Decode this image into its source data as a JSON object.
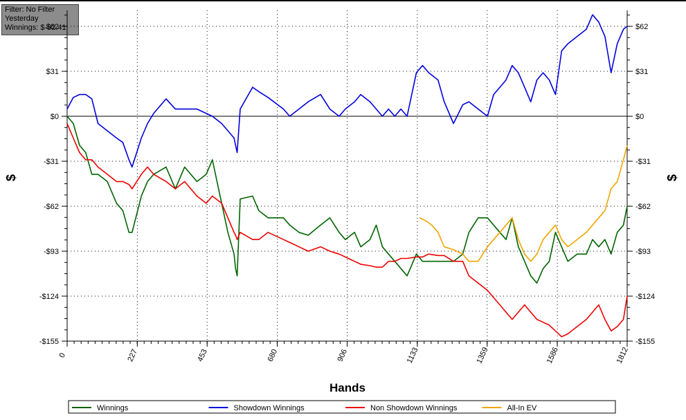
{
  "info_box": {
    "filter": "Filter: No Filter",
    "period": "Yesterday",
    "winnings": "Winnings: $-62.41"
  },
  "chart_data": {
    "type": "line",
    "xlabel": "Hands",
    "ylabel": "$",
    "xlim": [
      0,
      1812
    ],
    "ylim": [
      -155,
      73
    ],
    "x_ticks": [
      0,
      227,
      453,
      680,
      906,
      1133,
      1359,
      1586,
      1812
    ],
    "x_tick_labels": [
      "0",
      "227",
      "453",
      "680",
      "906",
      "1133",
      "1359",
      "1586",
      "1812"
    ],
    "y_ticks": [
      62,
      31,
      0,
      -31,
      -62,
      -93,
      -124,
      -155
    ],
    "y_tick_labels": [
      "$62",
      "$31",
      "$0",
      "-$31",
      "-$62",
      "-$93",
      "-$124",
      "-$155"
    ],
    "grid": true,
    "legend_position": "bottom",
    "series": [
      {
        "name": "Winnings",
        "color": "#006400",
        "x": [
          0,
          20,
          40,
          60,
          80,
          100,
          130,
          160,
          180,
          200,
          210,
          240,
          260,
          280,
          320,
          350,
          380,
          420,
          450,
          470,
          500,
          520,
          540,
          545,
          550,
          560,
          600,
          620,
          650,
          700,
          720,
          750,
          780,
          820,
          850,
          880,
          900,
          930,
          950,
          980,
          1000,
          1020,
          1040,
          1060,
          1080,
          1100,
          1130,
          1150,
          1170,
          1200,
          1220,
          1250,
          1280,
          1300,
          1330,
          1360,
          1380,
          1400,
          1420,
          1440,
          1460,
          1480,
          1500,
          1520,
          1540,
          1560,
          1580,
          1600,
          1620,
          1650,
          1680,
          1700,
          1720,
          1740,
          1760,
          1780,
          1800,
          1812
        ],
        "y": [
          0,
          -5,
          -20,
          -25,
          -40,
          -40,
          -45,
          -60,
          -65,
          -80,
          -80,
          -55,
          -45,
          -40,
          -35,
          -50,
          -35,
          -45,
          -40,
          -30,
          -60,
          -80,
          -95,
          -105,
          -110,
          -57,
          -55,
          -65,
          -70,
          -70,
          -75,
          -80,
          -82,
          -75,
          -70,
          -80,
          -85,
          -80,
          -90,
          -85,
          -75,
          -90,
          -95,
          -100,
          -105,
          -110,
          -95,
          -100,
          -100,
          -100,
          -100,
          -100,
          -95,
          -80,
          -70,
          -70,
          -75,
          -80,
          -85,
          -70,
          -90,
          -100,
          -110,
          -115,
          -105,
          -100,
          -80,
          -90,
          -100,
          -95,
          -95,
          -85,
          -90,
          -85,
          -95,
          -80,
          -75,
          -62
        ]
      },
      {
        "name": "Showdown Winnings",
        "color": "#0000dd",
        "x": [
          0,
          20,
          40,
          60,
          80,
          100,
          130,
          160,
          180,
          200,
          210,
          240,
          260,
          280,
          320,
          350,
          380,
          420,
          450,
          470,
          500,
          520,
          540,
          545,
          550,
          560,
          600,
          620,
          650,
          700,
          720,
          750,
          780,
          820,
          850,
          880,
          900,
          930,
          950,
          980,
          1000,
          1020,
          1040,
          1060,
          1080,
          1100,
          1130,
          1150,
          1170,
          1200,
          1220,
          1250,
          1280,
          1300,
          1330,
          1360,
          1380,
          1400,
          1420,
          1440,
          1460,
          1480,
          1500,
          1520,
          1540,
          1560,
          1580,
          1600,
          1620,
          1650,
          1680,
          1700,
          1720,
          1740,
          1760,
          1780,
          1800,
          1812
        ],
        "y": [
          5,
          13,
          15,
          15,
          12,
          -5,
          -10,
          -15,
          -18,
          -30,
          -35,
          -15,
          -5,
          2,
          12,
          5,
          5,
          5,
          2,
          0,
          -5,
          -10,
          -15,
          -20,
          -25,
          5,
          20,
          17,
          13,
          5,
          0,
          5,
          10,
          15,
          5,
          0,
          5,
          10,
          15,
          10,
          5,
          0,
          5,
          0,
          5,
          0,
          30,
          35,
          30,
          25,
          10,
          -5,
          8,
          10,
          5,
          0,
          15,
          20,
          25,
          35,
          30,
          20,
          10,
          25,
          30,
          25,
          15,
          45,
          50,
          55,
          60,
          70,
          65,
          55,
          30,
          50,
          60,
          62
        ]
      },
      {
        "name": "Non Showdown Winnings",
        "color": "#ee0000",
        "x": [
          0,
          20,
          40,
          60,
          80,
          100,
          130,
          160,
          180,
          200,
          210,
          240,
          260,
          280,
          320,
          350,
          380,
          420,
          450,
          470,
          500,
          520,
          540,
          545,
          550,
          560,
          600,
          620,
          650,
          700,
          720,
          750,
          780,
          820,
          850,
          880,
          900,
          930,
          950,
          980,
          1000,
          1020,
          1040,
          1060,
          1080,
          1100,
          1130,
          1150,
          1170,
          1200,
          1220,
          1250,
          1280,
          1300,
          1330,
          1360,
          1380,
          1400,
          1420,
          1440,
          1460,
          1480,
          1500,
          1520,
          1540,
          1560,
          1580,
          1600,
          1620,
          1650,
          1680,
          1700,
          1720,
          1740,
          1760,
          1780,
          1800,
          1812
        ],
        "y": [
          -5,
          -15,
          -25,
          -30,
          -30,
          -35,
          -40,
          -45,
          -45,
          -47,
          -50,
          -40,
          -35,
          -40,
          -45,
          -50,
          -45,
          -55,
          -60,
          -55,
          -60,
          -70,
          -80,
          -82,
          -85,
          -80,
          -85,
          -85,
          -80,
          -85,
          -87,
          -90,
          -93,
          -90,
          -93,
          -95,
          -97,
          -100,
          -102,
          -103,
          -104,
          -104,
          -100,
          -100,
          -98,
          -98,
          -97,
          -97,
          -95,
          -96,
          -96,
          -100,
          -100,
          -110,
          -115,
          -120,
          -125,
          -130,
          -135,
          -140,
          -135,
          -130,
          -135,
          -140,
          -142,
          -144,
          -148,
          -152,
          -150,
          -145,
          -140,
          -135,
          -130,
          -140,
          -148,
          -145,
          -140,
          -124
        ]
      },
      {
        "name": "All-In EV",
        "color": "#f0a500",
        "x": [
          1140,
          1160,
          1180,
          1200,
          1220,
          1250,
          1280,
          1300,
          1330,
          1360,
          1380,
          1400,
          1420,
          1440,
          1460,
          1480,
          1500,
          1520,
          1540,
          1560,
          1580,
          1600,
          1620,
          1650,
          1680,
          1700,
          1720,
          1740,
          1760,
          1780,
          1800,
          1812
        ],
        "y": [
          -70,
          -72,
          -75,
          -80,
          -90,
          -92,
          -95,
          -100,
          -100,
          -90,
          -85,
          -80,
          -75,
          -70,
          -85,
          -95,
          -100,
          -95,
          -85,
          -80,
          -75,
          -85,
          -90,
          -85,
          -80,
          -75,
          -70,
          -65,
          -50,
          -45,
          -30,
          -20
        ]
      }
    ]
  }
}
